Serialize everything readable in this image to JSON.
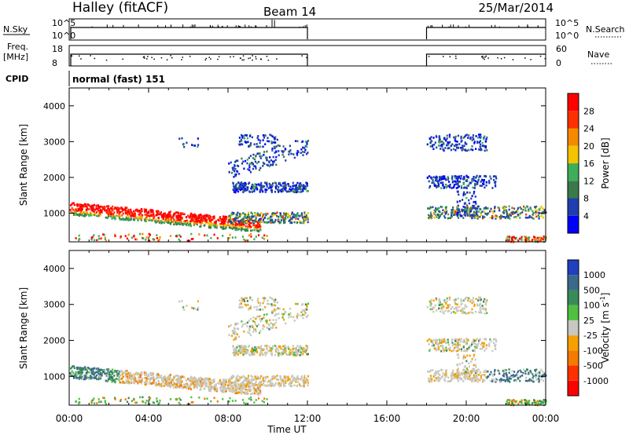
{
  "header": {
    "station": "Halley (fitACF)",
    "beam": "Beam 14",
    "date": "25/Mar/2014"
  },
  "top_panels": {
    "nsky_label": "N.Sky",
    "nsky_ticks": [
      "10^5",
      "10^0"
    ],
    "nsearch_label": "N.Search",
    "nsearch_ticks": [
      "10^5",
      "10^0"
    ],
    "freq_label_line1": "Freq.",
    "freq_label_line2": "[MHz]",
    "freq_ticks": [
      "18",
      "8"
    ],
    "nave_label": "Nave",
    "nave_ticks": [
      "60",
      "0"
    ],
    "cpid_label": "CPID",
    "cpid_value": "normal (fast) 151"
  },
  "chart_data": [
    {
      "type": "heatmap",
      "name": "power",
      "ylabel": "Slant Range [km]",
      "yticks": [
        "1000",
        "2000",
        "3000",
        "4000"
      ],
      "ylim": [
        200,
        4500
      ],
      "xlim": [
        0,
        24
      ],
      "colorbar_label": "Power [dB]",
      "colorbar_ticks": [
        "4",
        "8",
        "12",
        "16",
        "20",
        "24",
        "28"
      ],
      "colors": [
        "#0000ff",
        "#1f3fb0",
        "#3a7a4a",
        "#3fae5a",
        "#f5c400",
        "#f58a00",
        "#ff3000",
        "#ff0000"
      ],
      "data_gap": [
        12,
        18
      ]
    },
    {
      "type": "heatmap",
      "name": "velocity",
      "ylabel": "Slant Range [km]",
      "yticks": [
        "1000",
        "2000",
        "3000",
        "4000"
      ],
      "ylim": [
        200,
        4500
      ],
      "xlim": [
        0,
        24
      ],
      "xlabel": "Time UT",
      "xticks": [
        "00:00",
        "04:00",
        "08:00",
        "12:00",
        "16:00",
        "20:00",
        "00:00"
      ],
      "colorbar_label": "Velocity [m s",
      "colorbar_label_sup": "-1",
      "colorbar_ticks": [
        "1000",
        "500",
        "100",
        "25",
        "-25",
        "-100",
        "-500",
        "-1000"
      ],
      "colors": [
        "#2040c0",
        "#3a6a8a",
        "#3a8a5a",
        "#50c040",
        "#c8c8c0",
        "#f5a000",
        "#f57a00",
        "#ff3000",
        "#ff0000"
      ],
      "data_gap": [
        12,
        18
      ]
    }
  ]
}
